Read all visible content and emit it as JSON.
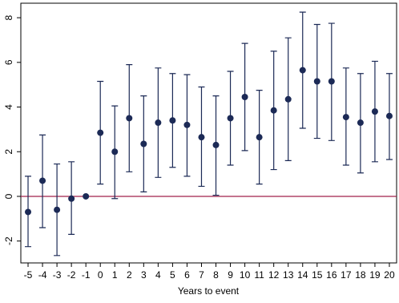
{
  "chart_data": {
    "type": "errorbar",
    "x_label": "Years to event",
    "x": [
      -5,
      -4,
      -3,
      -2,
      -1,
      0,
      1,
      2,
      3,
      4,
      5,
      6,
      7,
      8,
      9,
      10,
      11,
      12,
      13,
      14,
      15,
      16,
      17,
      18,
      19,
      20
    ],
    "series": [
      {
        "color": "#1c2a56",
        "values": [
          -0.7,
          0.7,
          -0.6,
          -0.1,
          0,
          2.85,
          2.0,
          3.5,
          2.35,
          3.3,
          3.4,
          3.2,
          2.65,
          2.3,
          3.5,
          4.45,
          2.65,
          3.85,
          4.35,
          5.65,
          5.15,
          5.15,
          3.55,
          3.3,
          3.8,
          3.6
        ],
        "ci_low": [
          -2.25,
          -1.4,
          -2.65,
          -1.7,
          null,
          0.55,
          -0.1,
          1.1,
          0.2,
          0.85,
          1.3,
          0.9,
          0.45,
          0.05,
          1.4,
          2.05,
          0.55,
          1.2,
          1.6,
          3.05,
          2.6,
          2.5,
          1.4,
          1.05,
          1.55,
          1.65
        ],
        "ci_high": [
          0.9,
          2.75,
          1.45,
          1.55,
          null,
          5.15,
          4.05,
          5.9,
          4.5,
          5.75,
          5.5,
          5.45,
          4.9,
          4.5,
          5.6,
          6.85,
          4.75,
          6.5,
          7.1,
          8.25,
          7.7,
          7.75,
          5.75,
          5.5,
          6.05,
          5.5
        ]
      }
    ],
    "xlim": [
      -5.5,
      20.5
    ],
    "ylim": [
      -2.98,
      8.65
    ],
    "xticks": [
      -5,
      -4,
      -3,
      -2,
      -1,
      0,
      1,
      2,
      3,
      4,
      5,
      6,
      7,
      8,
      9,
      10,
      11,
      12,
      13,
      14,
      15,
      16,
      17,
      18,
      19,
      20
    ],
    "yticks": [
      -2,
      0,
      2,
      4,
      6,
      8
    ],
    "hline": 0,
    "hline_color": "#a0204a"
  }
}
